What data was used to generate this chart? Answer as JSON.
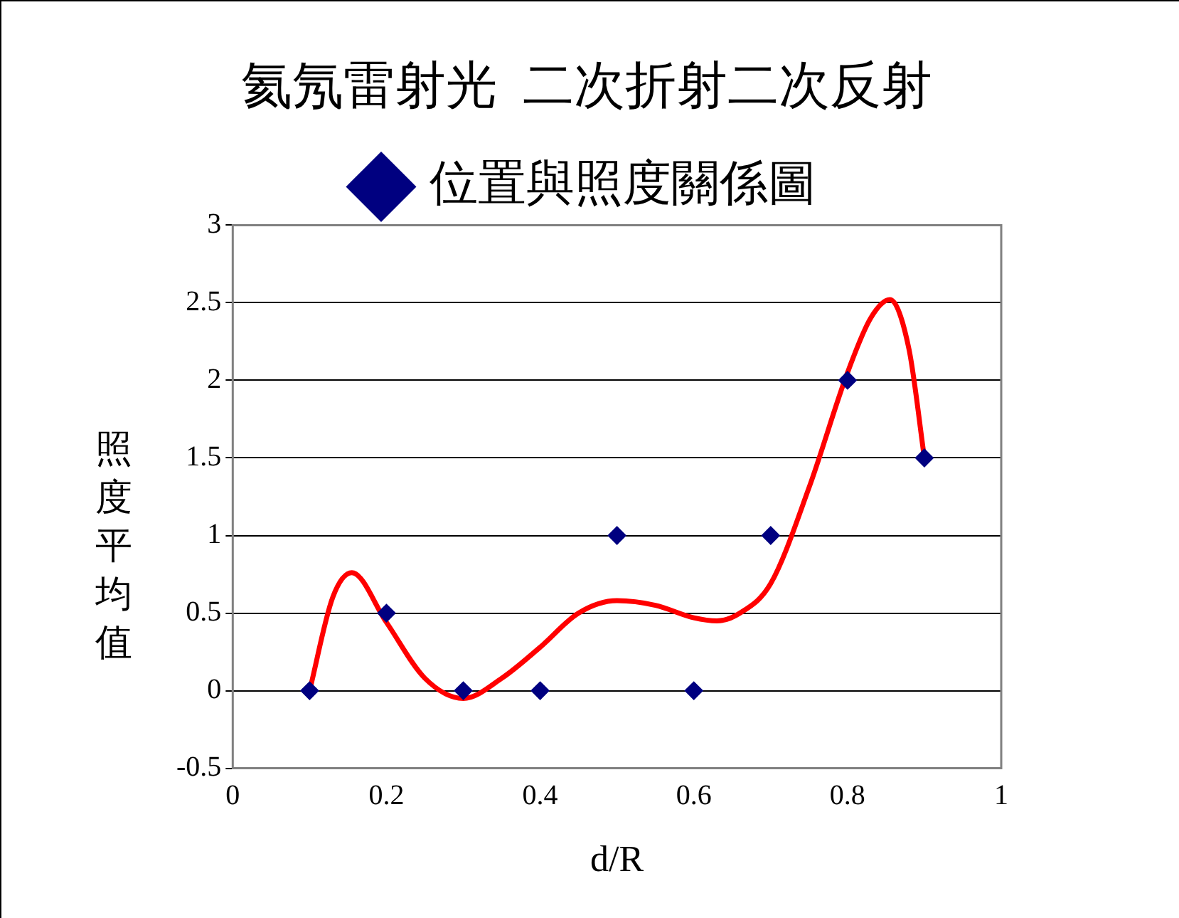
{
  "chart_data": {
    "type": "scatter",
    "title": "氦氖雷射光  二次折射二次反射",
    "xlabel": "d/R",
    "ylabel": "照度平均值",
    "x": [
      0.1,
      0.2,
      0.3,
      0.4,
      0.5,
      0.6,
      0.7,
      0.8,
      0.9
    ],
    "series": [
      {
        "name": "位置與照度關係圖",
        "color": "#000080",
        "marker": "diamond",
        "values": [
          0,
          0.5,
          0,
          0,
          1,
          0,
          1,
          2,
          1.5
        ]
      },
      {
        "type": "line",
        "color": "#ff0000",
        "marker": "none",
        "x": [
          0.1,
          0.13,
          0.155,
          0.2,
          0.25,
          0.3,
          0.35,
          0.4,
          0.45,
          0.5,
          0.55,
          0.6,
          0.63,
          0.66,
          0.7,
          0.75,
          0.8,
          0.83,
          0.855,
          0.88,
          0.9
        ],
        "values": [
          0,
          0.6,
          0.76,
          0.44,
          0.08,
          -0.05,
          0.08,
          0.28,
          0.5,
          0.58,
          0.55,
          0.47,
          0.45,
          0.5,
          0.69,
          1.31,
          2.05,
          2.4,
          2.52,
          2.2,
          1.5
        ]
      }
    ],
    "xlim": [
      0,
      1
    ],
    "xticks": [
      0,
      0.2,
      0.4,
      0.6,
      0.8,
      1
    ],
    "ylim": [
      -0.5,
      3
    ],
    "yticks": [
      -0.5,
      0,
      0.5,
      1,
      1.5,
      2,
      2.5,
      3
    ],
    "grid": "y",
    "legend": "top"
  }
}
